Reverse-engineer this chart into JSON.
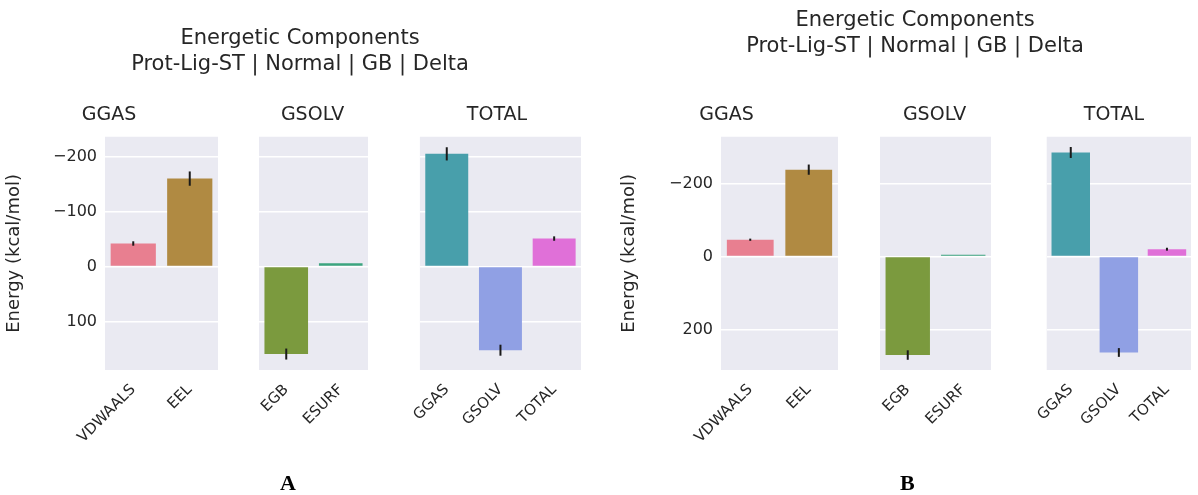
{
  "chart_data": [
    {
      "type": "bar",
      "title": "GGAS",
      "ylabel": "Energy (kcal/mol)",
      "categories": [
        "VDWAALS",
        "EEL"
      ],
      "values": [
        -42,
        -160
      ],
      "colors": [
        "#e87f90",
        "#b08a42"
      ],
      "errors": [
        4,
        13
      ],
      "ylim": [
        188,
        -236
      ],
      "yticks": [
        -200,
        -100,
        0,
        100
      ],
      "grid": "y",
      "annotations": [
        "Energetic Components",
        "Prot-Lig-ST | Normal | GB | Delta",
        "A"
      ]
    },
    {
      "type": "bar",
      "title": "GSOLV",
      "categories": [
        "EGB",
        "ESURF"
      ],
      "values": [
        159,
        -6
      ],
      "colors": [
        "#7b9a3e",
        "#3ca57f"
      ],
      "errors": [
        10,
        null
      ],
      "ylim": [
        188,
        -236
      ],
      "yticks": [
        -200,
        -100,
        0,
        100
      ],
      "grid": "y",
      "tick_labels": "x"
    },
    {
      "type": "bar",
      "title": "TOTAL",
      "categories": [
        "GGAS",
        "GSOLV",
        "TOTAL"
      ],
      "values": [
        -205,
        152,
        -51
      ],
      "colors": [
        "#489fab",
        "#90a0e4",
        "#e070d8"
      ],
      "errors": [
        12,
        10,
        4
      ],
      "ylim": [
        188,
        -236
      ],
      "yticks": [
        -200,
        -100,
        0,
        100
      ],
      "grid": "y",
      "tick_labels": "x"
    },
    {
      "type": "bar",
      "title": "GGAS",
      "ylabel": "Energy (kcal/mol)",
      "categories": [
        "VDWAALS",
        "EEL"
      ],
      "values": [
        -46,
        -238
      ],
      "colors": [
        "#e87f90",
        "#b08a42"
      ],
      "errors": [
        3,
        14
      ],
      "ylim": [
        311,
        -328
      ],
      "yticks": [
        -200,
        0,
        200
      ],
      "grid": "y",
      "annotations": [
        "Energetic Components",
        "Prot-Lig-ST | Normal | GB | Delta",
        "B"
      ]
    },
    {
      "type": "bar",
      "title": "GSOLV",
      "categories": [
        "EGB",
        "ESURF"
      ],
      "values": [
        270,
        -5
      ],
      "colors": [
        "#7b9a3e",
        "#3ca57f"
      ],
      "errors": [
        13,
        null
      ],
      "ylim": [
        311,
        -328
      ],
      "yticks": [
        -200,
        0,
        200
      ],
      "grid": "y",
      "tick_labels": "x"
    },
    {
      "type": "bar",
      "title": "TOTAL",
      "categories": [
        "GGAS",
        "GSOLV",
        "TOTAL"
      ],
      "values": [
        -285,
        263,
        -20
      ],
      "colors": [
        "#489fab",
        "#90a0e4",
        "#e070d8"
      ],
      "errors": [
        15,
        12,
        4
      ],
      "ylim": [
        311,
        -328
      ],
      "yticks": [
        -200,
        0,
        200
      ],
      "grid": "y",
      "tick_labels": "x"
    }
  ]
}
